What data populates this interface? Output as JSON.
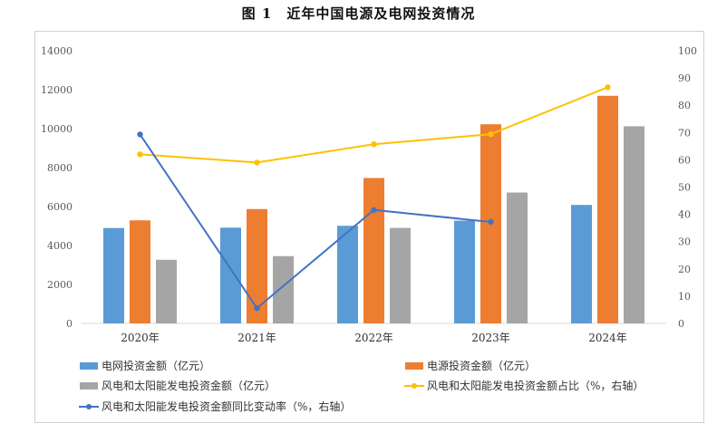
{
  "figure_title": "图 1　近年中国电源及电网投资情况",
  "chart_data": {
    "type": "bar",
    "title": "图 1　近年中国电源及电网投资情况",
    "categories": [
      "2020年",
      "2021年",
      "2022年",
      "2023年",
      "2024年"
    ],
    "y_left": {
      "ylim": [
        0,
        14000
      ],
      "ticks": [
        0,
        2000,
        4000,
        6000,
        8000,
        10000,
        12000,
        14000
      ]
    },
    "y_right": {
      "ylim": [
        0,
        100
      ],
      "ticks": [
        0,
        10,
        20,
        30,
        40,
        50,
        60,
        70,
        80,
        90,
        100
      ]
    },
    "series": [
      {
        "name": "电网投资金额（亿元）",
        "kind": "bar",
        "axis": "left",
        "color": "#5b9bd5",
        "values": [
          4896,
          4916,
          5012,
          5275,
          6083
        ]
      },
      {
        "name": "电源投资金额（亿元）",
        "kind": "bar",
        "axis": "left",
        "color": "#ed7d31",
        "values": [
          5292,
          5870,
          7464,
          10225,
          11687
        ]
      },
      {
        "name": "风电和太阳能发电投资金额（亿元）",
        "kind": "bar",
        "axis": "left",
        "color": "#a5a5a5",
        "values": [
          3267,
          3454,
          4903,
          6719,
          10120
        ]
      },
      {
        "name": "风电和太阳能发电投资金额占比（%，右轴）",
        "kind": "line",
        "axis": "right",
        "color": "#ffc000",
        "values": [
          62,
          59,
          65.7,
          69.4,
          86.6
        ]
      },
      {
        "name": "风电和太阳能发电投资金额同比变动率（%，右轴）",
        "kind": "line",
        "axis": "right",
        "color": "#4472c4",
        "values": [
          69.3,
          5.6,
          41.6,
          37.2,
          null
        ]
      }
    ],
    "grid": false,
    "legend_position": "bottom"
  }
}
